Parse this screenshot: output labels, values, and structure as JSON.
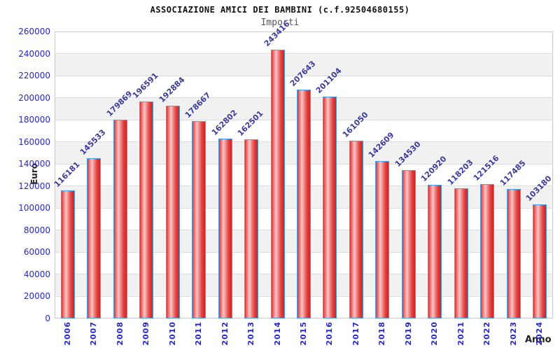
{
  "header": {
    "title": "ASSOCIAZIONE AMICI DEI BAMBINI (c.f.92504680155)",
    "subtitle": "Importi"
  },
  "chart_data": {
    "type": "bar",
    "title": "ASSOCIAZIONE AMICI DEI BAMBINI (c.f.92504680155)",
    "subtitle": "Importi",
    "xlabel": "Anno",
    "ylabel": "Euro",
    "categories": [
      "2006",
      "2007",
      "2008",
      "2009",
      "2010",
      "2011",
      "2012",
      "2013",
      "2014",
      "2015",
      "2016",
      "2017",
      "2018",
      "2019",
      "2020",
      "2021",
      "2022",
      "2023",
      "2024"
    ],
    "values": [
      116181,
      145533,
      179869,
      196591,
      192884,
      178667,
      162802,
      162501,
      243416,
      207643,
      201104,
      161050,
      142609,
      134530,
      120920,
      118203,
      121516,
      117485,
      103180
    ],
    "ylim": [
      0,
      260000
    ],
    "ytick_step": 20000,
    "grid": true,
    "legend": "none",
    "colors": {
      "bar_fill": "#e02020",
      "bar_border": "#4aa1e8",
      "axis_tick_label": "#2626cf",
      "value_label": "#3b3b9e",
      "band_alt": "#f1f1f1",
      "gridline": "#dcdcdc"
    }
  }
}
